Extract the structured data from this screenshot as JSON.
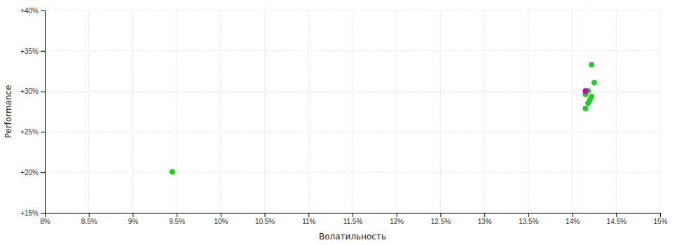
{
  "chart_data": {
    "type": "scatter",
    "xlabel": "Волатильность",
    "ylabel": "Performance",
    "xlim": [
      0.08,
      0.15
    ],
    "ylim": [
      0.15,
      0.4
    ],
    "xticks": [
      {
        "value": 0.08,
        "label": "8%"
      },
      {
        "value": 0.085,
        "label": "8.5%"
      },
      {
        "value": 0.09,
        "label": "9%"
      },
      {
        "value": 0.095,
        "label": "9.5%"
      },
      {
        "value": 0.1,
        "label": "10%"
      },
      {
        "value": 0.105,
        "label": "10.5%"
      },
      {
        "value": 0.11,
        "label": "11%"
      },
      {
        "value": 0.115,
        "label": "11.5%"
      },
      {
        "value": 0.12,
        "label": "12%"
      },
      {
        "value": 0.125,
        "label": "12.5%"
      },
      {
        "value": 0.13,
        "label": "13%"
      },
      {
        "value": 0.135,
        "label": "13.5%"
      },
      {
        "value": 0.14,
        "label": "14%"
      },
      {
        "value": 0.145,
        "label": "14.5%"
      },
      {
        "value": 0.15,
        "label": "15%"
      }
    ],
    "yticks": [
      {
        "value": 0.15,
        "label": "+15%"
      },
      {
        "value": 0.2,
        "label": "+20%"
      },
      {
        "value": 0.25,
        "label": "+25%"
      },
      {
        "value": 0.3,
        "label": "+30%"
      },
      {
        "value": 0.35,
        "label": "+35%"
      },
      {
        "value": 0.4,
        "label": "+40%"
      }
    ],
    "grid": true,
    "series": [
      {
        "color": "#22cc22",
        "x": [
          0.0945,
          0.1422,
          0.1425,
          0.1418,
          0.1415,
          0.1422,
          0.142,
          0.1418,
          0.1415
        ],
        "values": [
          0.2005,
          0.333,
          0.311,
          0.3005,
          0.2965,
          0.2935,
          0.2895,
          0.2855,
          0.279
        ]
      },
      {
        "color": "#cc00cc",
        "x": [
          0.1415
        ],
        "values": [
          0.3005
        ]
      }
    ]
  }
}
